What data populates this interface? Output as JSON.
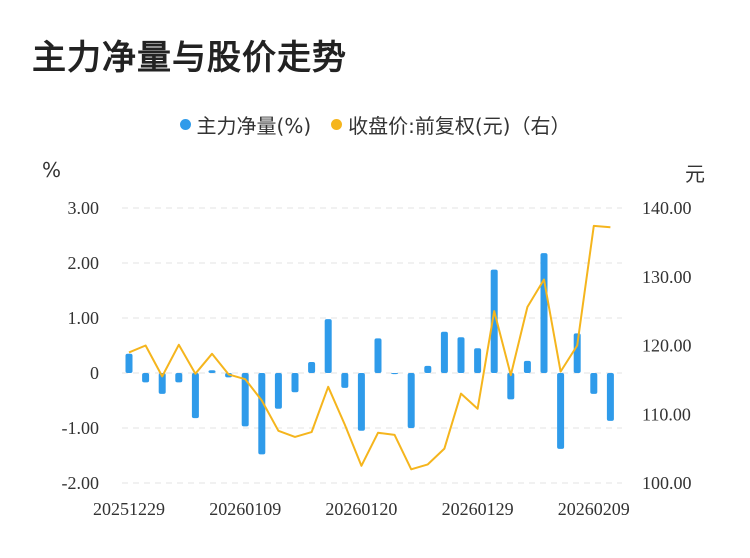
{
  "title": "主力净量与股价走势",
  "legend": {
    "left_series": "主力净量(%)",
    "right_series": "收盘价:前复权(元)（右）"
  },
  "units": {
    "left": "%",
    "right": "元"
  },
  "colors": {
    "bar": "#2f9bea",
    "line": "#f5b51d",
    "grid": "#e3e3e3"
  },
  "chart_data": {
    "type": "bar",
    "x_tick_labels": [
      "20251229",
      "20260109",
      "20260120",
      "20260129",
      "20260209"
    ],
    "x_tick_index": [
      0,
      7,
      14,
      21,
      28
    ],
    "y_left": {
      "ticks": [
        3.0,
        2.0,
        1.0,
        0,
        -1.0,
        -2.0
      ],
      "tick_labels": [
        "3.00",
        "2.00",
        "1.00",
        "0",
        "-1.00",
        "-2.00"
      ],
      "ylim": [
        -2.0,
        3.0
      ]
    },
    "y_right": {
      "ticks": [
        140,
        130,
        120,
        110,
        100
      ],
      "tick_labels": [
        "140.00",
        "130.00",
        "120.00",
        "110.00",
        "100.00"
      ],
      "ylim": [
        100,
        140
      ]
    },
    "series": [
      {
        "name": "主力净量(%)",
        "type": "bar",
        "axis": "left",
        "values": [
          0.35,
          -0.17,
          -0.38,
          -0.17,
          -0.82,
          0.05,
          -0.08,
          -0.97,
          -1.48,
          -0.65,
          -0.35,
          0.2,
          0.98,
          -0.27,
          -1.05,
          0.63,
          -0.02,
          -1.0,
          0.13,
          0.75,
          0.65,
          0.45,
          1.88,
          -0.48,
          0.22,
          2.18,
          -1.38,
          0.72,
          -0.38,
          -0.87
        ]
      },
      {
        "name": "收盘价:前复权(元)（右）",
        "type": "line",
        "axis": "right",
        "values": [
          119.0,
          120.0,
          115.5,
          120.1,
          115.9,
          118.8,
          115.8,
          115.1,
          112.0,
          107.6,
          106.7,
          107.4,
          114.0,
          108.5,
          102.5,
          107.3,
          107.0,
          102.0,
          102.7,
          105.0,
          113.0,
          110.8,
          125.0,
          115.7,
          125.6,
          129.6,
          116.2,
          120.0,
          137.4,
          137.2
        ]
      }
    ]
  }
}
